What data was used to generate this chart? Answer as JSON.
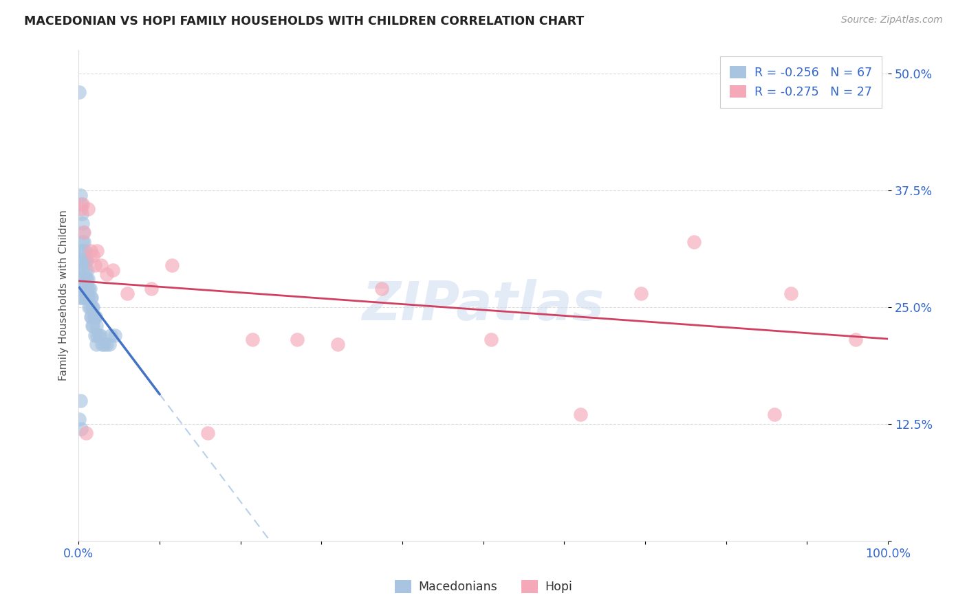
{
  "title": "MACEDONIAN VS HOPI FAMILY HOUSEHOLDS WITH CHILDREN CORRELATION CHART",
  "source": "Source: ZipAtlas.com",
  "ylabel": "Family Households with Children",
  "xlim": [
    0,
    1.0
  ],
  "ylim": [
    0,
    0.525
  ],
  "yticks": [
    0.0,
    0.125,
    0.25,
    0.375,
    0.5
  ],
  "ytick_labels": [
    "",
    "12.5%",
    "25.0%",
    "37.5%",
    "50.0%"
  ],
  "xticks": [
    0.0,
    0.1,
    0.2,
    0.3,
    0.4,
    0.5,
    0.6,
    0.7,
    0.8,
    0.9,
    1.0
  ],
  "xtick_labels": [
    "0.0%",
    "",
    "",
    "",
    "",
    "",
    "",
    "",
    "",
    "",
    "100.0%"
  ],
  "watermark": "ZIPatlas",
  "macedonian_color": "#a8c4e0",
  "hopi_color": "#f4a8b8",
  "trend_blue_solid": "#4472c4",
  "trend_pink": "#d04060",
  "trend_dashed_color": "#b8d0ea",
  "macedonian_x": [
    0.001,
    0.001,
    0.001,
    0.002,
    0.002,
    0.002,
    0.002,
    0.003,
    0.003,
    0.003,
    0.003,
    0.004,
    0.004,
    0.004,
    0.005,
    0.005,
    0.005,
    0.005,
    0.006,
    0.006,
    0.006,
    0.007,
    0.007,
    0.007,
    0.007,
    0.008,
    0.008,
    0.008,
    0.009,
    0.009,
    0.01,
    0.01,
    0.01,
    0.011,
    0.011,
    0.012,
    0.012,
    0.013,
    0.013,
    0.014,
    0.014,
    0.015,
    0.015,
    0.016,
    0.016,
    0.017,
    0.017,
    0.018,
    0.018,
    0.019,
    0.02,
    0.02,
    0.021,
    0.022,
    0.022,
    0.023,
    0.025,
    0.027,
    0.029,
    0.031,
    0.035,
    0.038,
    0.04,
    0.045,
    0.001,
    0.002,
    0.003
  ],
  "macedonian_y": [
    0.48,
    0.29,
    0.27,
    0.37,
    0.3,
    0.28,
    0.26,
    0.36,
    0.31,
    0.28,
    0.26,
    0.35,
    0.3,
    0.27,
    0.34,
    0.32,
    0.29,
    0.27,
    0.33,
    0.31,
    0.28,
    0.32,
    0.3,
    0.28,
    0.26,
    0.31,
    0.29,
    0.27,
    0.3,
    0.28,
    0.3,
    0.28,
    0.26,
    0.29,
    0.27,
    0.28,
    0.26,
    0.27,
    0.25,
    0.27,
    0.25,
    0.26,
    0.24,
    0.26,
    0.24,
    0.25,
    0.23,
    0.25,
    0.23,
    0.24,
    0.24,
    0.22,
    0.24,
    0.23,
    0.21,
    0.22,
    0.22,
    0.22,
    0.21,
    0.21,
    0.21,
    0.21,
    0.22,
    0.22,
    0.13,
    0.15,
    0.12
  ],
  "hopi_x": [
    0.003,
    0.005,
    0.007,
    0.009,
    0.012,
    0.015,
    0.018,
    0.02,
    0.023,
    0.028,
    0.035,
    0.042,
    0.06,
    0.09,
    0.115,
    0.16,
    0.215,
    0.27,
    0.32,
    0.375,
    0.51,
    0.62,
    0.695,
    0.76,
    0.86,
    0.88,
    0.96
  ],
  "hopi_y": [
    0.355,
    0.36,
    0.33,
    0.115,
    0.355,
    0.31,
    0.305,
    0.295,
    0.31,
    0.295,
    0.285,
    0.29,
    0.265,
    0.27,
    0.295,
    0.115,
    0.215,
    0.215,
    0.21,
    0.27,
    0.215,
    0.135,
    0.265,
    0.32,
    0.135,
    0.265,
    0.215
  ],
  "mac_trend_x_start": 0.001,
  "mac_trend_x_solid_end": 0.1,
  "mac_trend_x_dashed_end": 0.55,
  "hopi_trend_x_start": 0.0,
  "hopi_trend_x_end": 1.0,
  "legend_entries": [
    {
      "label": "R = -0.256   N = 67",
      "color": "#a8c4e0"
    },
    {
      "label": "R = -0.275   N = 27",
      "color": "#f4a8b8"
    }
  ],
  "bottom_legend": [
    {
      "label": "Macedonians",
      "color": "#a8c4e0"
    },
    {
      "label": "Hopi",
      "color": "#f4a8b8"
    }
  ]
}
